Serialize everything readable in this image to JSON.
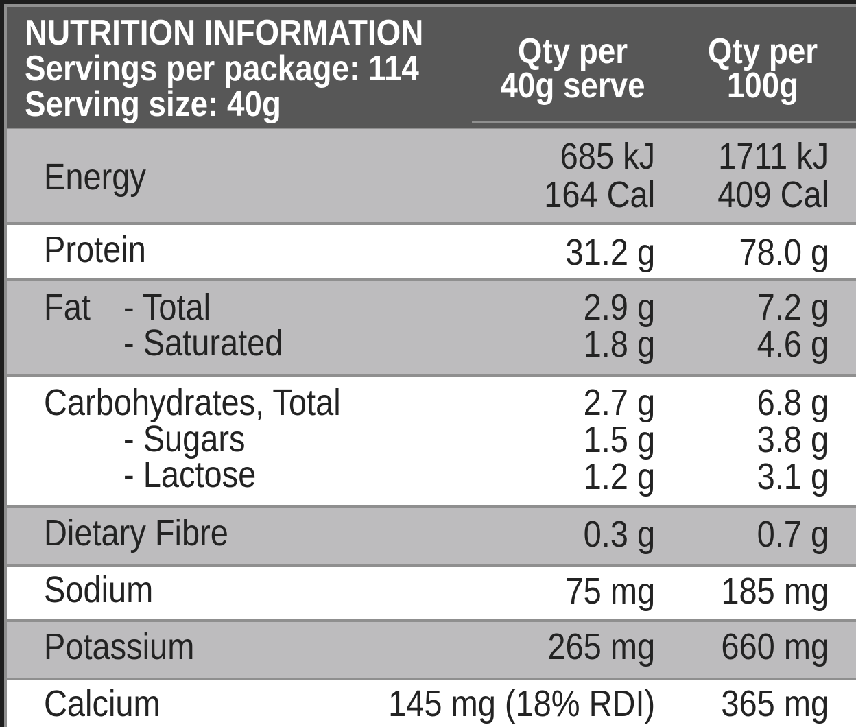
{
  "header": {
    "title": "NUTRITION INFORMATION",
    "servings": "Servings per package: 114",
    "serving_size": "Serving size: 40g",
    "col1": [
      "Qty per",
      "40g serve"
    ],
    "col2": [
      "Qty per",
      "100g"
    ]
  },
  "rows": {
    "energy": {
      "label": "Energy",
      "per_serve": [
        "685 kJ",
        "164 Cal"
      ],
      "per_100g": [
        "1711 kJ",
        "409 Cal"
      ]
    },
    "protein": {
      "label": "Protein",
      "per_serve": "31.2 g",
      "per_100g": "78.0 g"
    },
    "fat": {
      "label": "Fat",
      "sub": [
        "- Total",
        "- Saturated"
      ],
      "per_serve": [
        "2.9 g",
        "1.8 g"
      ],
      "per_100g": [
        "7.2 g",
        "4.6 g"
      ]
    },
    "carbs": {
      "label": "Carbohydrates, Total",
      "sub": [
        "- Sugars",
        "- Lactose"
      ],
      "per_serve": [
        "2.7 g",
        "1.5 g",
        "1.2 g"
      ],
      "per_100g": [
        "6.8 g",
        "3.8 g",
        "3.1 g"
      ]
    },
    "fibre": {
      "label": "Dietary Fibre",
      "per_serve": "0.3 g",
      "per_100g": "0.7 g"
    },
    "sodium": {
      "label": "Sodium",
      "per_serve": "75 mg",
      "per_100g": "185 mg"
    },
    "potassium": {
      "label": "Potassium",
      "per_serve": "265 mg",
      "per_100g": "660 mg"
    },
    "calcium": {
      "label": "Calcium",
      "per_serve": "145 mg (18% RDI)",
      "per_100g": "365 mg"
    }
  },
  "colors": {
    "header_bg": "#575757",
    "row_gray": "#bdbcbe",
    "row_white": "#ffffff",
    "border": "#8f8f8f",
    "text": "#232323"
  }
}
